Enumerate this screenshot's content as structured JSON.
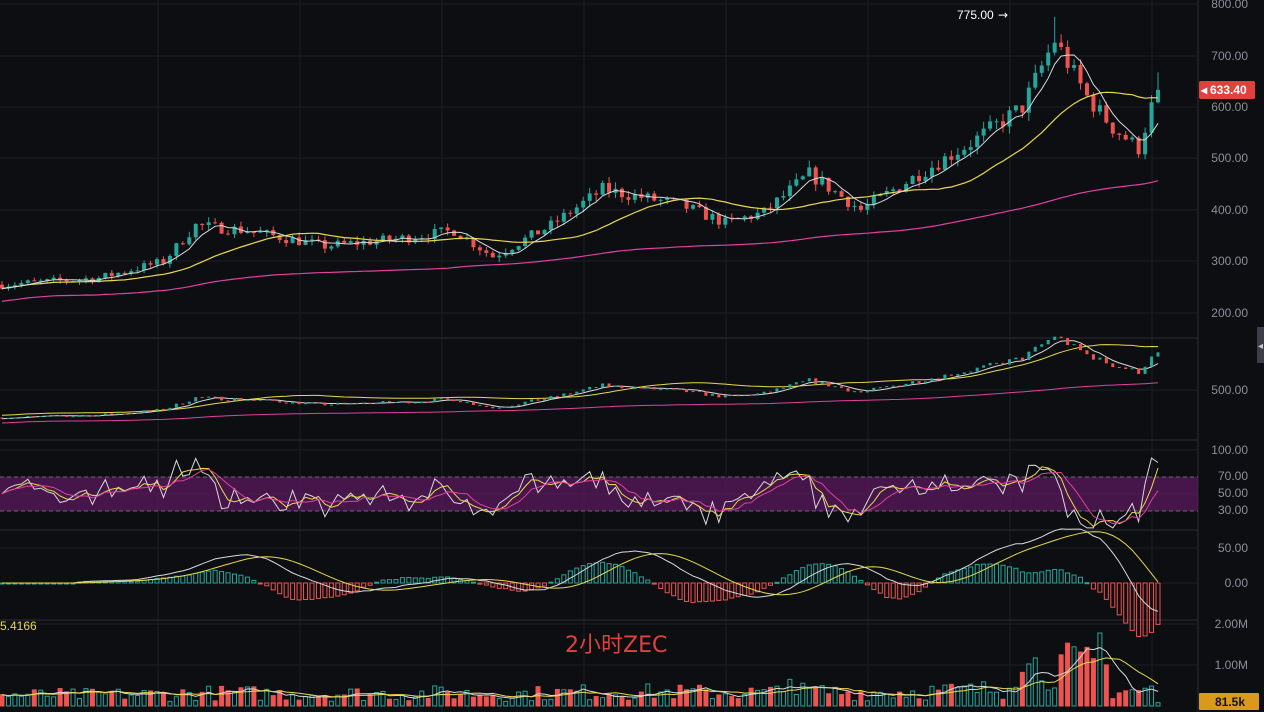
{
  "annotation": {
    "text": "2小时ZEC",
    "color": "#e0413c"
  },
  "colors": {
    "background": "#0d0e12",
    "up": "#26a69a",
    "down": "#ef5350",
    "ma_short": "#d9d9d9",
    "ma_mid": "#e8d94c",
    "ma_long": "#e040a0",
    "rsi_band": "#5a1a5e",
    "price_badge": "#e0413c",
    "volume_badge": "#d99a1c"
  },
  "chart_data": [
    {
      "type": "candlestick",
      "pane": "price",
      "y_ticks": [
        "800.00",
        "700.00",
        "600.00",
        "500.00",
        "400.00",
        "300.00",
        "200.00"
      ],
      "ylim": [
        200,
        800
      ],
      "high_marker": {
        "label": "775.00",
        "arrow": "→",
        "value": 775
      },
      "last_price": {
        "label": "633.40",
        "value": 633.4
      },
      "grid": true
    },
    {
      "type": "line",
      "pane": "indicator",
      "y_ticks": [
        "500.00"
      ],
      "grid": true
    },
    {
      "type": "line",
      "pane": "rsi",
      "y_ticks": [
        "100.00",
        "70.00",
        "50.00",
        "30.00"
      ],
      "ylim": [
        0,
        100
      ],
      "band": [
        30,
        70
      ],
      "grid": true
    },
    {
      "type": "bar",
      "pane": "macd",
      "y_ticks": [
        "50.00",
        "0.00"
      ],
      "left_value": "5.4166",
      "grid": true
    },
    {
      "type": "bar",
      "pane": "volume",
      "y_ticks": [
        "2.00M",
        "1.00M"
      ],
      "ylim": [
        0,
        2000000
      ],
      "last_volume": {
        "label": "81.5k",
        "value": 81500
      },
      "grid": true
    }
  ]
}
